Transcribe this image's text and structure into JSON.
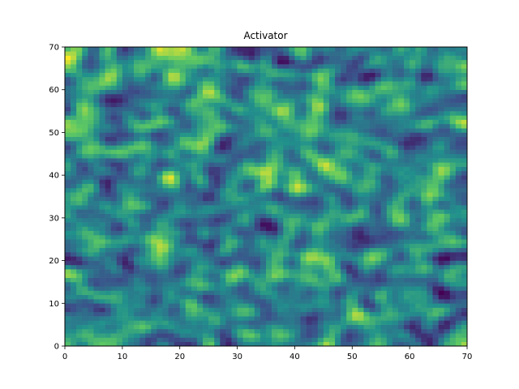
{
  "chart_data": {
    "type": "heatmap",
    "title": "Activator",
    "xlabel": "",
    "ylabel": "",
    "grid": false,
    "colormap": "viridis",
    "colormap_stops": [
      "#440154",
      "#3b528b",
      "#21918c",
      "#5ec962",
      "#fde725"
    ],
    "value_range": [
      0,
      1
    ],
    "shape": [
      70,
      70
    ],
    "noise_seed": 1337,
    "xlim": [
      0,
      70
    ],
    "ylim": [
      0,
      70
    ],
    "x_ticks": [
      "0",
      "10",
      "20",
      "30",
      "40",
      "50",
      "60",
      "70"
    ],
    "y_ticks": [
      "0",
      "10",
      "20",
      "30",
      "40",
      "50",
      "60",
      "70"
    ]
  }
}
